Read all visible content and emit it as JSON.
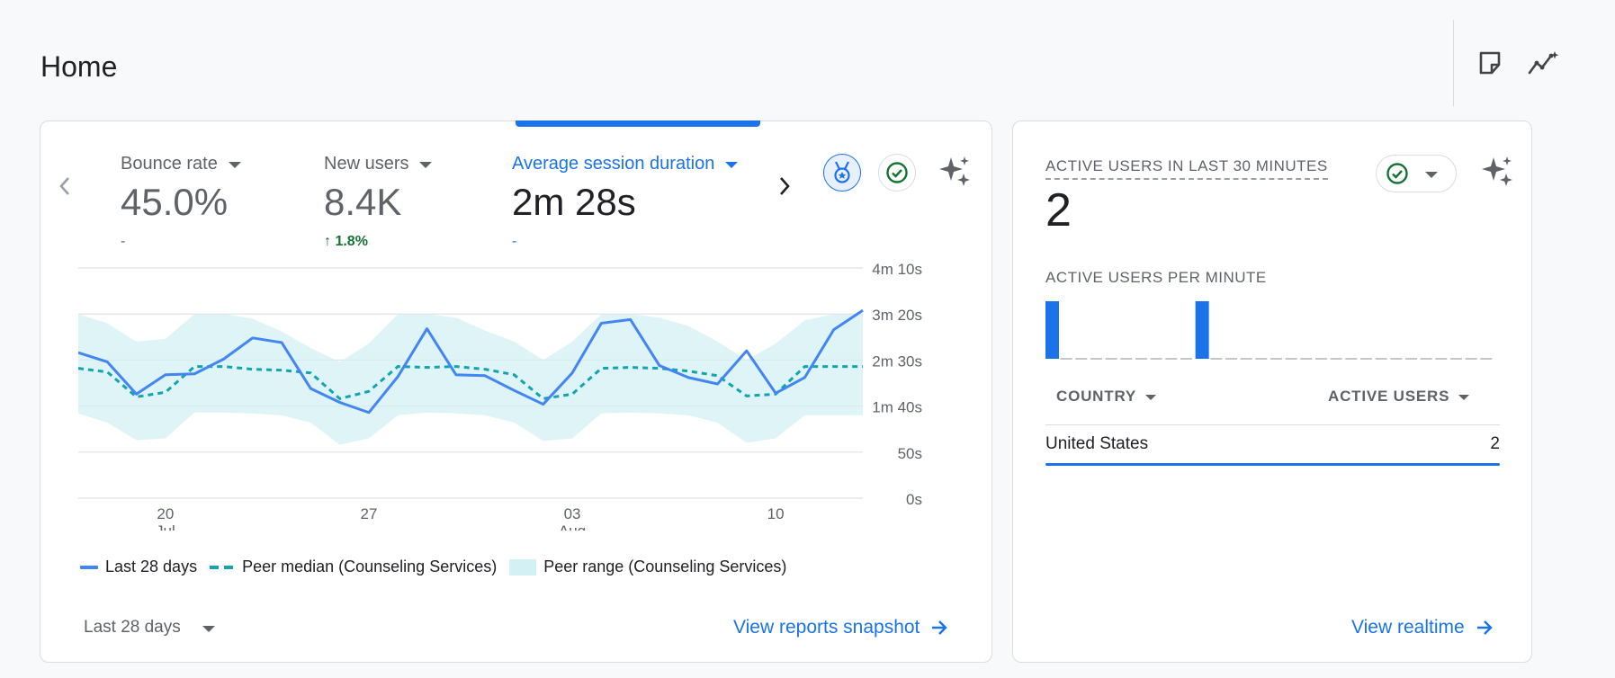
{
  "page": {
    "title": "Home"
  },
  "toolbar": {
    "icons": [
      "note-icon",
      "insights-icon"
    ]
  },
  "overview": {
    "metrics": [
      {
        "label": "Bounce rate",
        "value": "45.0%",
        "change": "-",
        "active": false
      },
      {
        "label": "New users",
        "value": "8.4K",
        "change": "1.8%",
        "change_direction": "up",
        "active": false
      },
      {
        "label": "Average session duration",
        "value": "2m 28s",
        "change": "-",
        "active": true
      }
    ],
    "badges": [
      "benchmark-medal-icon",
      "check-circle-icon",
      "sparkle-icon"
    ],
    "legend": [
      {
        "label": "Last 28 days",
        "color": "#4285f4"
      },
      {
        "label": "Peer median (Counseling Services)",
        "color": "#12a4af"
      },
      {
        "label": "Peer range (Counseling Services)",
        "color": "#d3f0f4"
      }
    ],
    "date_range": "Last 28 days",
    "link": "View reports snapshot"
  },
  "chart_data": {
    "type": "line",
    "title": "",
    "y_ticks": [
      "4m 10s",
      "3m 20s",
      "2m 30s",
      "1m 40s",
      "50s",
      "0s"
    ],
    "ylim": [
      0,
      250
    ],
    "x_ticks": [
      {
        "day": 3,
        "label": "20",
        "sublabel": "Jul"
      },
      {
        "day": 10,
        "label": "27",
        "sublabel": ""
      },
      {
        "day": 17,
        "label": "03",
        "sublabel": "Aug"
      },
      {
        "day": 24,
        "label": "10",
        "sublabel": ""
      }
    ],
    "x_days": [
      0,
      1,
      2,
      3,
      4,
      5,
      6,
      7,
      8,
      9,
      10,
      11,
      12,
      13,
      14,
      15,
      16,
      17,
      18,
      19,
      20,
      21,
      22,
      23,
      24,
      25,
      26,
      27
    ],
    "series": [
      {
        "name": "Last 28 days",
        "unit": "seconds",
        "values": [
          158,
          148,
          113,
          134,
          135,
          151,
          174,
          169,
          119,
          104,
          93,
          132,
          184,
          134,
          133,
          117,
          102,
          136,
          190,
          194,
          144,
          131,
          124,
          160,
          114,
          131,
          183,
          204
        ]
      },
      {
        "name": "Peer median (Counseling Services)",
        "unit": "seconds",
        "values": [
          141,
          137,
          110,
          115,
          143,
          143,
          140,
          139,
          136,
          108,
          116,
          143,
          142,
          143,
          140,
          134,
          108,
          113,
          141,
          142,
          141,
          138,
          133,
          111,
          113,
          143,
          143,
          143
        ]
      },
      {
        "name": "Peer range (Counseling Services)",
        "unit": "seconds",
        "upper": [
          200,
          190,
          170,
          173,
          200,
          200,
          195,
          181,
          163,
          148,
          168,
          200,
          200,
          196,
          182,
          170,
          150,
          170,
          200,
          200,
          196,
          187,
          170,
          150,
          168,
          193,
          200,
          200
        ],
        "lower": [
          92,
          82,
          63,
          65,
          93,
          93,
          92,
          90,
          82,
          58,
          65,
          90,
          93,
          92,
          90,
          82,
          62,
          65,
          92,
          93,
          92,
          90,
          82,
          60,
          65,
          90,
          90,
          90
        ]
      }
    ],
    "grid": true
  },
  "realtime": {
    "title": "ACTIVE USERS IN LAST 30 MINUTES",
    "value": "2",
    "sub_title": "ACTIVE USERS PER MINUTE",
    "per_minute": [
      1,
      0,
      0,
      0,
      0,
      0,
      0,
      0,
      0,
      0,
      1,
      0,
      0,
      0,
      0,
      0,
      0,
      0,
      0,
      0,
      0,
      0,
      0,
      0,
      0,
      0,
      0,
      0,
      0,
      0
    ],
    "columns": [
      "COUNTRY",
      "ACTIVE USERS"
    ],
    "rows": [
      {
        "country": "United States",
        "users": "2"
      }
    ],
    "link": "View realtime"
  }
}
